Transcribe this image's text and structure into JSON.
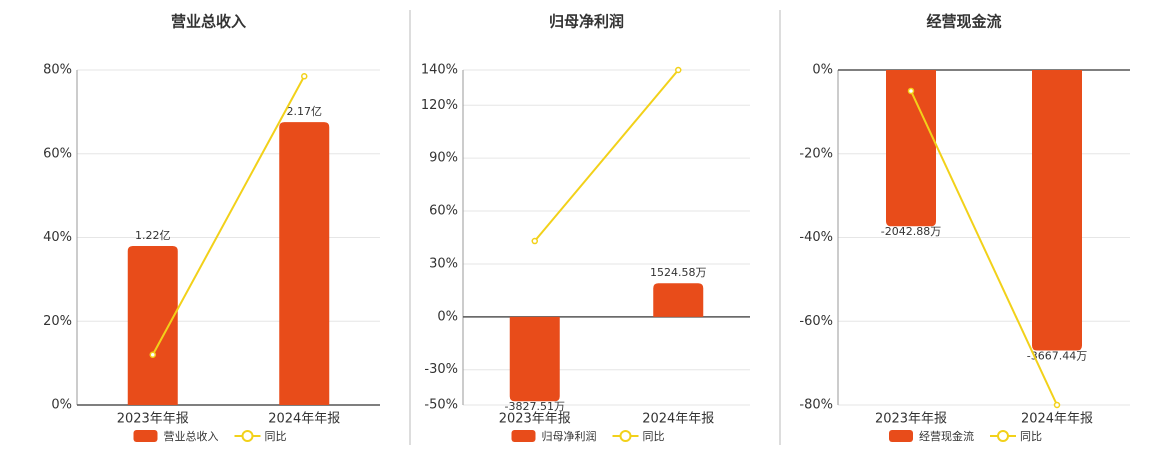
{
  "chart_data": [
    {
      "type": "bar",
      "title": "营业总收入",
      "categories": [
        "2023年年报",
        "2024年年报"
      ],
      "series": [
        {
          "name": "营业总收入",
          "type": "bar",
          "axis": "y2",
          "color": "#e84c1a",
          "values": [
            1.22,
            2.17
          ],
          "value_labels": [
            "1.22亿",
            "2.17亿"
          ]
        },
        {
          "name": "同比",
          "type": "line",
          "color": "#f2d11a",
          "values": [
            12,
            78.5
          ]
        }
      ],
      "ylim": [
        0,
        80
      ],
      "yticks": [
        {
          "value": 0,
          "label": "0%"
        },
        {
          "value": 20,
          "label": "20%"
        },
        {
          "value": 40,
          "label": "40%"
        },
        {
          "value": 60,
          "label": "60%"
        },
        {
          "value": 80,
          "label": "80%"
        }
      ],
      "y2lim": [
        0,
        2.57
      ],
      "grid": true
    },
    {
      "type": "bar",
      "title": "归母净利润",
      "categories": [
        "2023年年报",
        "2024年年报"
      ],
      "series": [
        {
          "name": "归母净利润",
          "type": "bar",
          "axis": "y2",
          "color": "#e84c1a",
          "values": [
            -3827.51,
            1524.58
          ],
          "value_labels": [
            "-3827.51万",
            "1524.58万"
          ]
        },
        {
          "name": "同比",
          "type": "line",
          "color": "#f2d11a",
          "values": [
            43,
            140
          ]
        }
      ],
      "ylim": [
        -50,
        140
      ],
      "yticks": [
        {
          "value": -50,
          "label": "-50%"
        },
        {
          "value": -30,
          "label": "-30%"
        },
        {
          "value": 0,
          "label": "0%"
        },
        {
          "value": 30,
          "label": "30%"
        },
        {
          "value": 60,
          "label": "60%"
        },
        {
          "value": 90,
          "label": "90%"
        },
        {
          "value": 120,
          "label": "120%"
        },
        {
          "value": 140,
          "label": "140%"
        }
      ],
      "y2lim": [
        -4000,
        11200
      ],
      "grid": true
    },
    {
      "type": "bar",
      "title": "经营现金流",
      "categories": [
        "2023年年报",
        "2024年年报"
      ],
      "series": [
        {
          "name": "经营现金流",
          "type": "bar",
          "axis": "y2",
          "color": "#e84c1a",
          "values": [
            -2042.88,
            -3667.44
          ],
          "value_labels": [
            "-2042.88万",
            "-3667.44万"
          ]
        },
        {
          "name": "同比",
          "type": "line",
          "color": "#f2d11a",
          "values": [
            -5,
            -80
          ]
        }
      ],
      "ylim": [
        -80,
        0
      ],
      "yticks": [
        {
          "value": 0,
          "label": "0%"
        },
        {
          "value": -20,
          "label": "-20%"
        },
        {
          "value": -40,
          "label": "-40%"
        },
        {
          "value": -60,
          "label": "-60%"
        },
        {
          "value": -80,
          "label": "-80%"
        }
      ],
      "y2lim": [
        -4380,
        0
      ],
      "grid": true
    }
  ]
}
